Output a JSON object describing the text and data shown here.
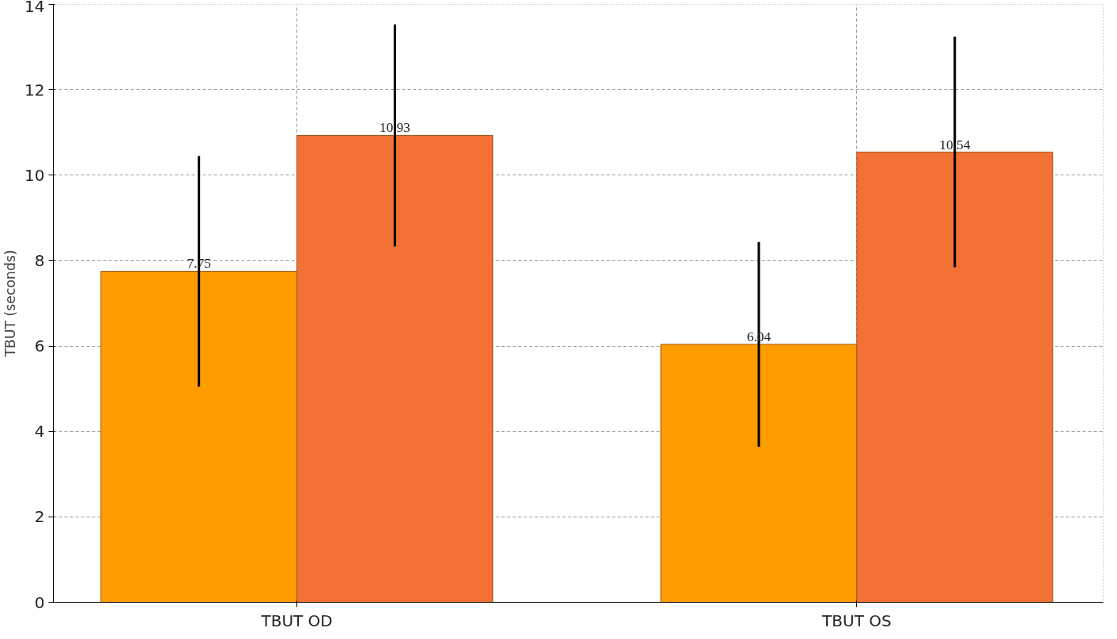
{
  "chart_data": {
    "type": "bar",
    "ylabel": "TBUT (seconds)",
    "categories": [
      "TBUT OD",
      "TBUT OS"
    ],
    "series": [
      {
        "color": "#ff9c00",
        "values": [
          7.75,
          6.04
        ],
        "errors": [
          2.7,
          2.4
        ]
      },
      {
        "color": "#f47136",
        "values": [
          10.93,
          10.54
        ],
        "errors": [
          2.6,
          2.7
        ]
      }
    ],
    "ylim": [
      0,
      14
    ],
    "yticks": [
      0,
      2,
      4,
      6,
      8,
      10,
      12,
      14
    ],
    "grid": true,
    "data_labels": true
  }
}
